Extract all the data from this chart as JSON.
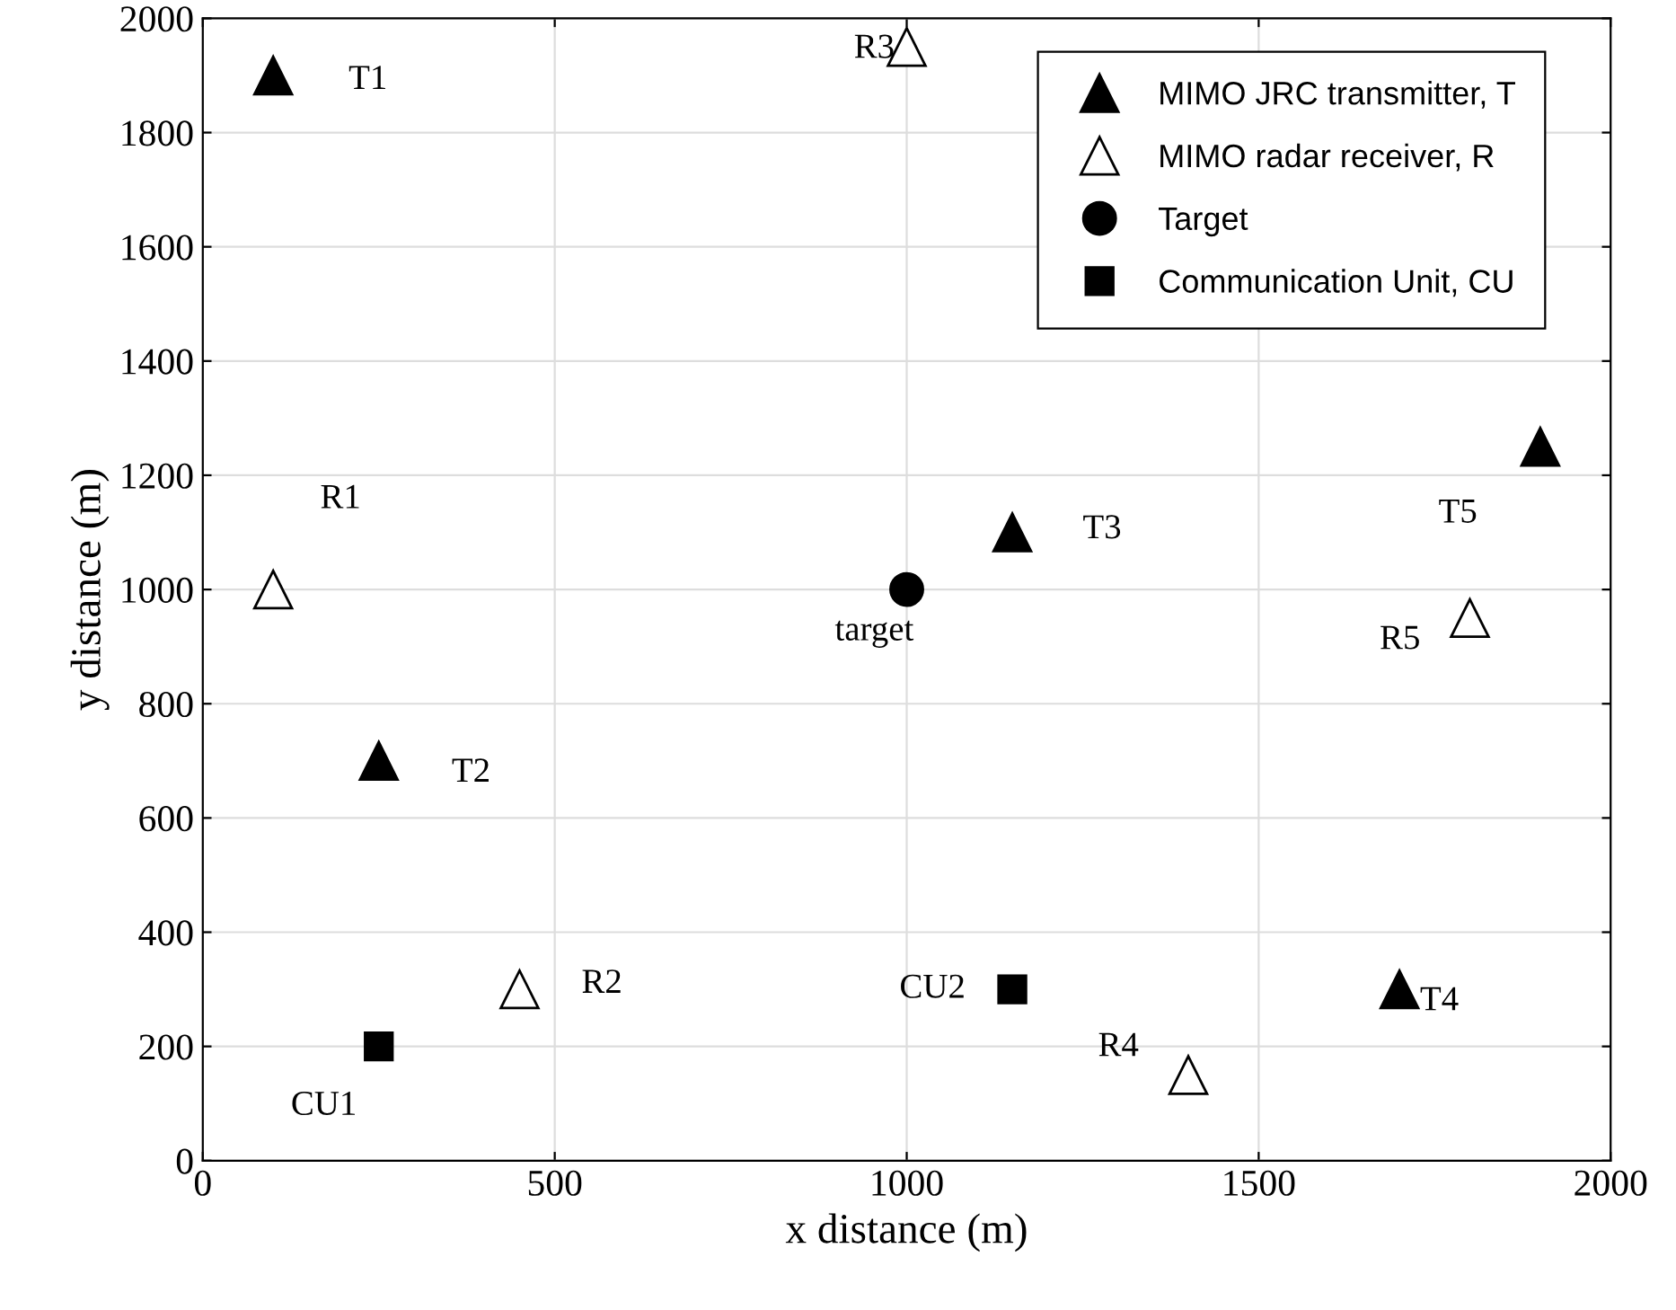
{
  "chart_data": {
    "type": "scatter",
    "xlabel": "x distance (m)",
    "ylabel": "y distance (m)",
    "xlim": [
      0,
      2000
    ],
    "ylim": [
      0,
      2000
    ],
    "xticks": [
      0,
      500,
      1000,
      1500,
      2000
    ],
    "yticks": [
      0,
      200,
      400,
      600,
      800,
      1000,
      1200,
      1400,
      1600,
      1800,
      2000
    ],
    "grid": true,
    "legend": "top right",
    "series": [
      {
        "name": "MIMO JRC transmitter, T",
        "color": "#000000",
        "marker": "triangle",
        "x": [
          100,
          250,
          1150,
          1700,
          1900
        ],
        "values": [
          1900,
          700,
          1100,
          300,
          1250
        ]
      },
      {
        "name": "MIMO radar receiver, R",
        "color": "#ffffff",
        "marker": "triangle",
        "x": [
          100,
          450,
          1000,
          1400,
          1800
        ],
        "values": [
          1000,
          300,
          1950,
          150,
          950
        ]
      },
      {
        "name": "Target",
        "color": "#000000",
        "marker": "circle",
        "x": [
          1000
        ],
        "values": [
          1000
        ]
      },
      {
        "name": "Communication Unit, CU",
        "color": "#000000",
        "marker": "square",
        "x": [
          250,
          1150
        ],
        "values": [
          200,
          300
        ]
      }
    ],
    "annotations": [
      {
        "text": "T1",
        "x": 100,
        "y": 1900
      },
      {
        "text": "T2",
        "x": 250,
        "y": 700
      },
      {
        "text": "T3",
        "x": 1150,
        "y": 1100
      },
      {
        "text": "T4",
        "x": 1700,
        "y": 300
      },
      {
        "text": "T5",
        "x": 1900,
        "y": 1250
      },
      {
        "text": "R1",
        "x": 100,
        "y": 1000
      },
      {
        "text": "R2",
        "x": 450,
        "y": 300
      },
      {
        "text": "R3",
        "x": 1000,
        "y": 1950
      },
      {
        "text": "R4",
        "x": 1400,
        "y": 150
      },
      {
        "text": "R5",
        "x": 1800,
        "y": 950
      },
      {
        "text": "target",
        "x": 1000,
        "y": 1000
      },
      {
        "text": "CU1",
        "x": 250,
        "y": 200
      },
      {
        "text": "CU2",
        "x": 1150,
        "y": 300
      }
    ]
  }
}
